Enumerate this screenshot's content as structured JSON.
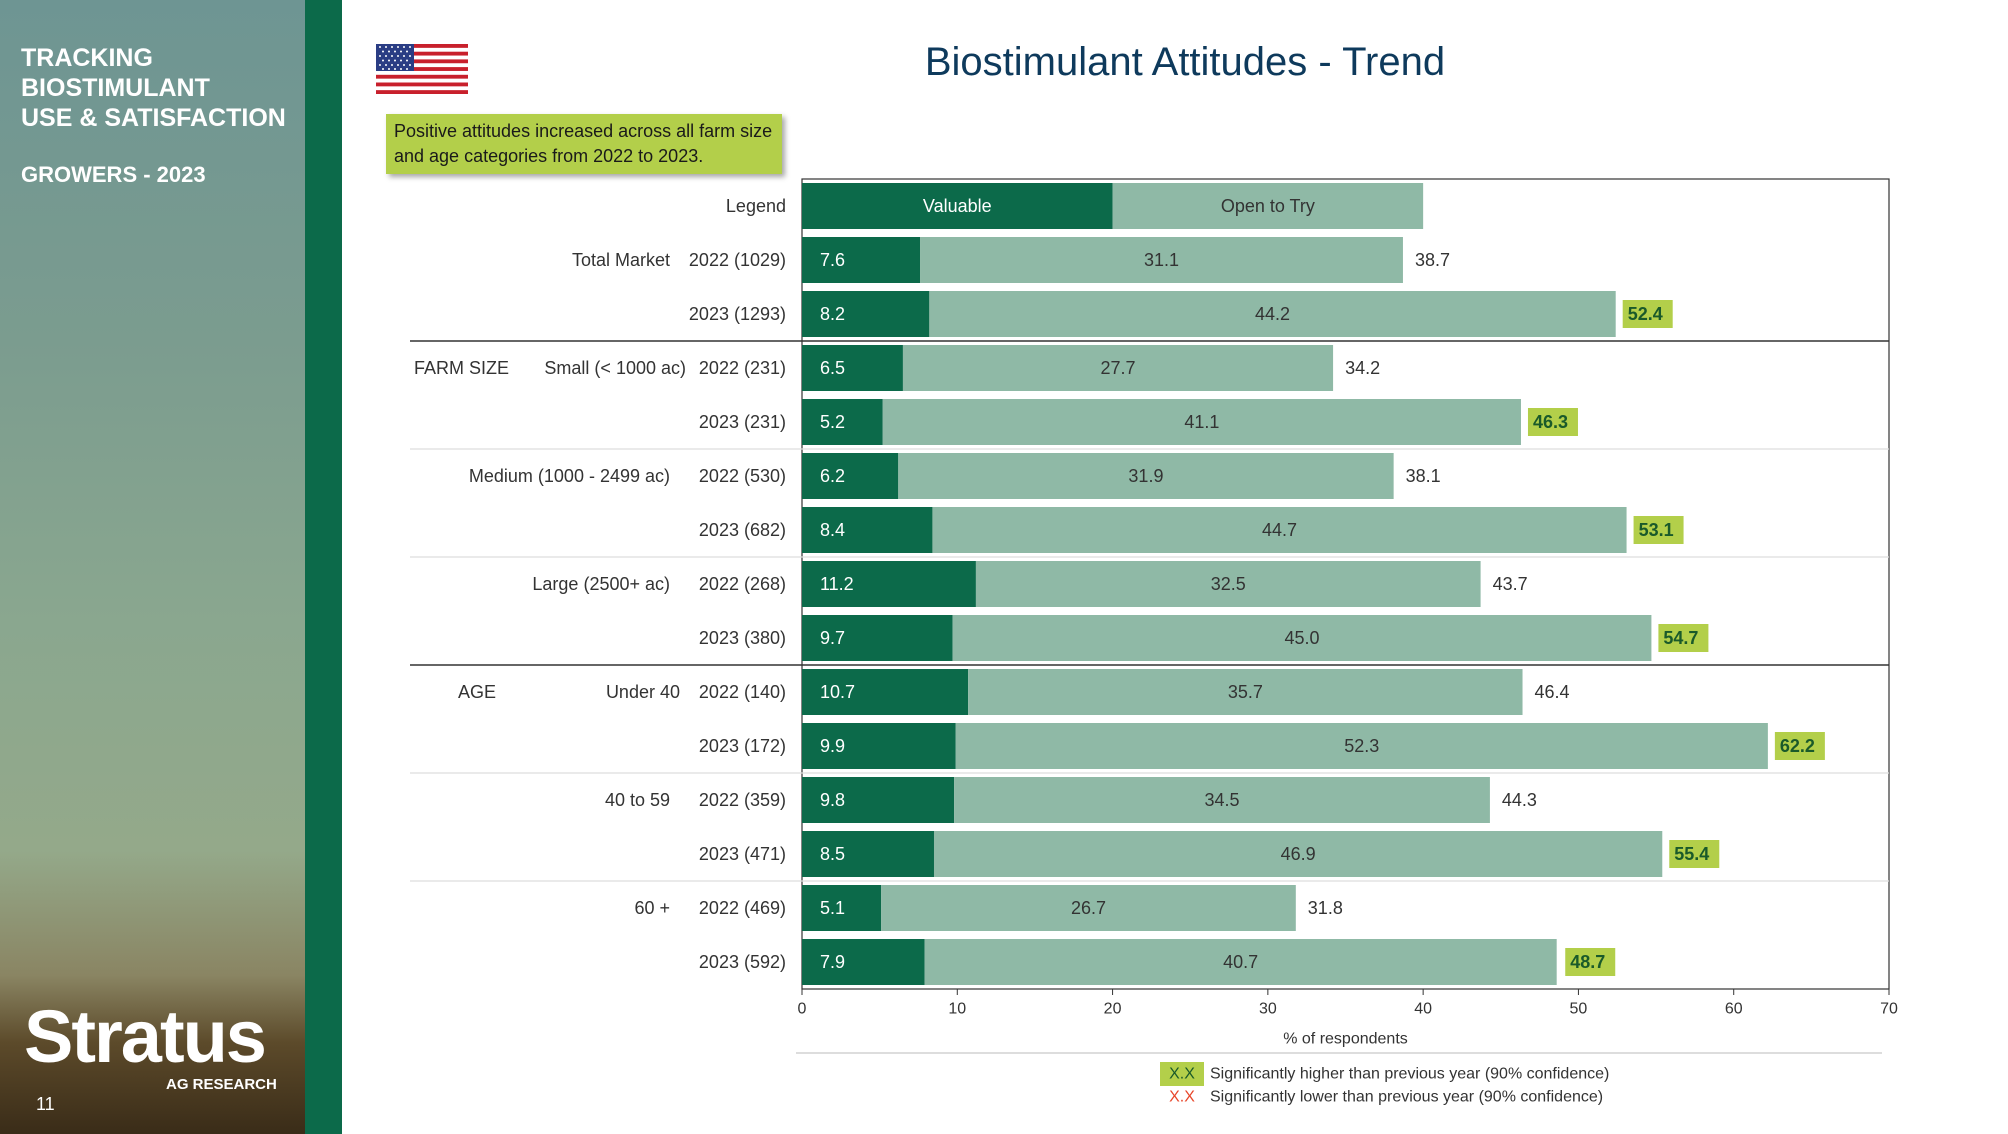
{
  "sidebar": {
    "title_lines": [
      "TRACKING",
      "BIOSTIMULANT",
      "USE & SATISFACTION"
    ],
    "subtitle": "GROWERS - 2023",
    "logo_word": "Stratus",
    "logo_sub": "AG RESEARCH",
    "page_number": "11"
  },
  "flag_icon": "us-flag-icon",
  "callout": "Positive attitudes increased across all farm size and age categories from 2022 to 2023.",
  "colors": {
    "valuable": "#0c6a4a",
    "open_to_try": "#8fb9a6",
    "sig_higher_bg": "#b3cf4a",
    "sig_lower_text": "#e8462a",
    "title": "#0e3a5c"
  },
  "chart_data": {
    "type": "bar",
    "orientation": "horizontal",
    "stacked": true,
    "title": "Biostimulant Attitudes - Trend",
    "xlabel": "% of respondents",
    "xlim": [
      0,
      70
    ],
    "xticks": [
      "0",
      "10",
      "20",
      "30",
      "40",
      "50",
      "60",
      "70"
    ],
    "legend_row": {
      "label": "Legend",
      "segments": [
        {
          "name": "Valuable",
          "value": 20
        },
        {
          "name": "Open to Try",
          "value": 20
        }
      ]
    },
    "series": [
      {
        "name": "Valuable"
      },
      {
        "name": "Open to Try"
      }
    ],
    "rows": [
      {
        "section": "",
        "group": "Total Market",
        "year": "2022 (1029)",
        "valuable": "7.6",
        "open": "31.1",
        "total": "38.7",
        "sig": false
      },
      {
        "section": "",
        "group": "",
        "year": "2023 (1293)",
        "valuable": "8.2",
        "open": "44.2",
        "total": "52.4",
        "sig": true
      },
      {
        "section": "FARM SIZE",
        "group": "Small (< 1000 ac)",
        "year": "2022 (231)",
        "valuable": "6.5",
        "open": "27.7",
        "total": "34.2",
        "sig": false
      },
      {
        "section": "",
        "group": "",
        "year": "2023 (231)",
        "valuable": "5.2",
        "open": "41.1",
        "total": "46.3",
        "sig": true
      },
      {
        "section": "",
        "group": "Medium (1000 - 2499 ac)",
        "year": "2022 (530)",
        "valuable": "6.2",
        "open": "31.9",
        "total": "38.1",
        "sig": false
      },
      {
        "section": "",
        "group": "",
        "year": "2023 (682)",
        "valuable": "8.4",
        "open": "44.7",
        "total": "53.1",
        "sig": true
      },
      {
        "section": "",
        "group": "Large (2500+ ac)",
        "year": "2022 (268)",
        "valuable": "11.2",
        "open": "32.5",
        "total": "43.7",
        "sig": false
      },
      {
        "section": "",
        "group": "",
        "year": "2023 (380)",
        "valuable": "9.7",
        "open": "45.0",
        "total": "54.7",
        "sig": true
      },
      {
        "section": "AGE",
        "group": "Under 40",
        "year": "2022 (140)",
        "valuable": "10.7",
        "open": "35.7",
        "total": "46.4",
        "sig": false
      },
      {
        "section": "",
        "group": "",
        "year": "2023 (172)",
        "valuable": "9.9",
        "open": "52.3",
        "total": "62.2",
        "sig": true
      },
      {
        "section": "",
        "group": "40 to 59",
        "year": "2022 (359)",
        "valuable": "9.8",
        "open": "34.5",
        "total": "44.3",
        "sig": false
      },
      {
        "section": "",
        "group": "",
        "year": "2023 (471)",
        "valuable": "8.5",
        "open": "46.9",
        "total": "55.4",
        "sig": true
      },
      {
        "section": "",
        "group": "60 +",
        "year": "2022 (469)",
        "valuable": "5.1",
        "open": "26.7",
        "total": "31.8",
        "sig": false
      },
      {
        "section": "",
        "group": "",
        "year": "2023 (592)",
        "valuable": "7.9",
        "open": "40.7",
        "total": "48.7",
        "sig": true
      }
    ],
    "footnotes": [
      {
        "marker": "X.X",
        "text": "Significantly higher than previous year (90% confidence)"
      },
      {
        "marker": "X.X",
        "text": "Significantly lower than previous year (90% confidence)"
      }
    ]
  }
}
